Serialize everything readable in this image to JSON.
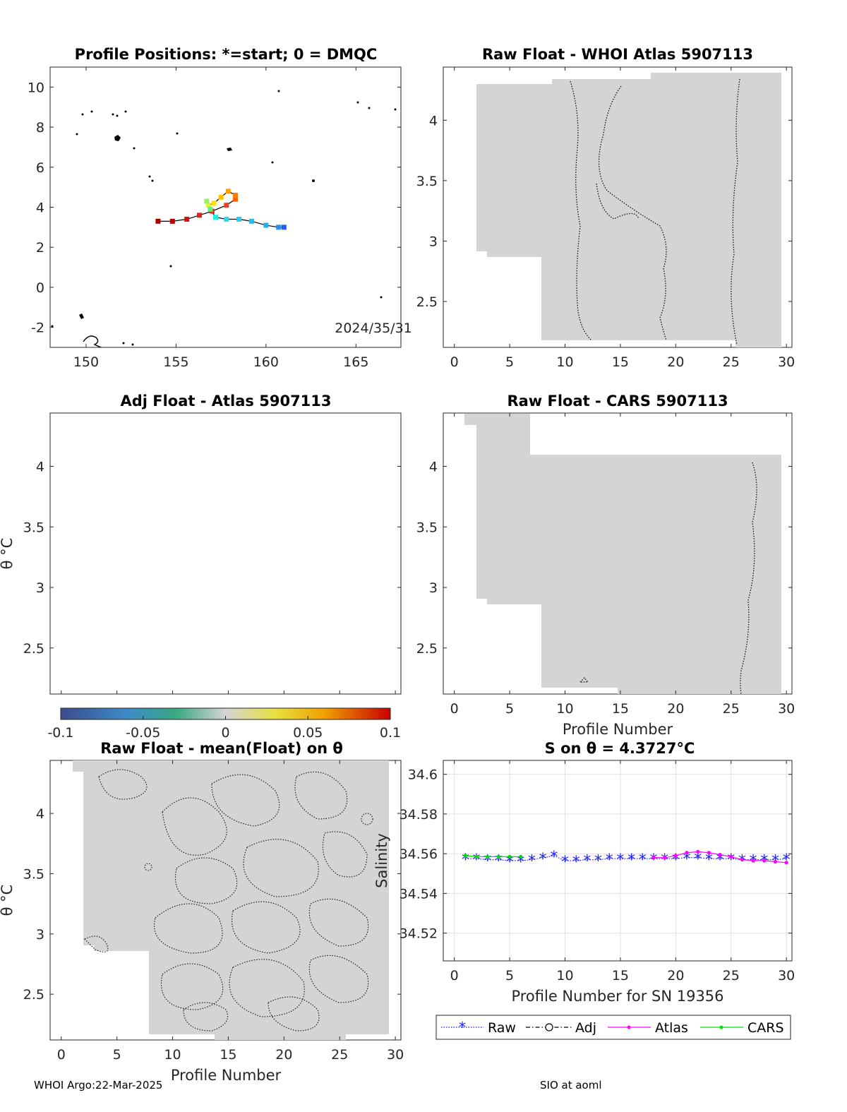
{
  "footer": {
    "left": "WHOI Argo:22-Mar-2025",
    "right": "SIO at aoml"
  },
  "colors": {
    "raw": "#1a1aff",
    "atlas": "#ff00ff",
    "cars": "#00e000",
    "field": "#d4d4d4",
    "track": "#000000"
  },
  "chart_data": [
    {
      "type": "map",
      "title": "Profile Positions: *=start; 0 = DMQC",
      "xlim": [
        148,
        167.5
      ],
      "ylim": [
        -3,
        11
      ],
      "xticks": [
        150,
        155,
        160,
        165
      ],
      "yticks": [
        -2,
        0,
        2,
        4,
        6,
        8,
        10
      ],
      "annotation": "2024/35/31",
      "track": [
        {
          "lon": 154.0,
          "lat": 3.3,
          "color": "#a00000"
        },
        {
          "lon": 154.8,
          "lat": 3.3,
          "color": "#c00000"
        },
        {
          "lon": 155.6,
          "lat": 3.4,
          "color": "#d81010"
        },
        {
          "lon": 156.3,
          "lat": 3.6,
          "color": "#e02020"
        },
        {
          "lon": 157.0,
          "lat": 3.8,
          "color": "#e83020"
        },
        {
          "lon": 157.8,
          "lat": 4.1,
          "color": "#f04020"
        },
        {
          "lon": 158.3,
          "lat": 4.4,
          "color": "#ff6000"
        },
        {
          "lon": 158.3,
          "lat": 4.6,
          "color": "#ff8000"
        },
        {
          "lon": 157.9,
          "lat": 4.8,
          "color": "#ffa000"
        },
        {
          "lon": 157.5,
          "lat": 4.5,
          "color": "#ffc000"
        },
        {
          "lon": 157.1,
          "lat": 4.2,
          "color": "#ffe000"
        },
        {
          "lon": 156.8,
          "lat": 4.1,
          "color": "#e0f040"
        },
        {
          "lon": 156.7,
          "lat": 4.3,
          "color": "#a0f060"
        },
        {
          "lon": 156.9,
          "lat": 3.9,
          "color": "#60f080"
        },
        {
          "lon": 157.2,
          "lat": 3.5,
          "color": "#20f0e0"
        },
        {
          "lon": 157.8,
          "lat": 3.4,
          "color": "#20e0f0"
        },
        {
          "lon": 158.5,
          "lat": 3.4,
          "color": "#20d0f0"
        },
        {
          "lon": 159.2,
          "lat": 3.3,
          "color": "#20c0f0"
        },
        {
          "lon": 160.0,
          "lat": 3.1,
          "color": "#20b0f0"
        },
        {
          "lon": 160.7,
          "lat": 3.0,
          "color": "#2090f0"
        },
        {
          "lon": 161.0,
          "lat": 3.0,
          "color": "#2060f0"
        }
      ]
    },
    {
      "type": "heatmap",
      "title": "Raw Float - WHOI Atlas  5907113",
      "xlim": [
        -1,
        30.5
      ],
      "ylim": [
        2.12,
        4.44
      ],
      "xticks": [
        0,
        5,
        10,
        15,
        20,
        25,
        30
      ],
      "yticks": [
        2.5,
        3,
        3.5,
        4
      ]
    },
    {
      "type": "heatmap",
      "title": "Adj Float - Atlas  5907113",
      "ylabel": "θ °C",
      "xlim": [
        -1,
        30.5
      ],
      "ylim": [
        2.12,
        4.44
      ],
      "yticks": [
        2.5,
        3,
        3.5,
        4
      ],
      "colorbar": {
        "min": -0.1,
        "max": 0.1,
        "ticks": [
          "-0.1",
          "-0.05",
          "0",
          "0.05",
          "0.1"
        ]
      }
    },
    {
      "type": "heatmap",
      "title": "Raw Float - CARS  5907113",
      "xlabel": "Profile Number",
      "xlim": [
        -1,
        30.5
      ],
      "ylim": [
        2.12,
        4.44
      ],
      "xticks": [
        0,
        5,
        10,
        15,
        20,
        25,
        30
      ],
      "yticks": [
        2.5,
        3,
        3.5,
        4
      ]
    },
    {
      "type": "heatmap",
      "title": "Raw Float - mean(Float) on θ",
      "xlabel": "Profile Number",
      "ylabel": "θ °C",
      "xlim": [
        -1,
        30.5
      ],
      "ylim": [
        2.12,
        4.44
      ],
      "xticks": [
        0,
        5,
        10,
        15,
        20,
        25,
        30
      ],
      "yticks": [
        2.5,
        3,
        3.5,
        4
      ]
    },
    {
      "type": "line",
      "title": "S on θ = 4.3727°C",
      "xlabel": "Profile Number for SN 19356",
      "ylabel": "Salinity",
      "xlim": [
        -1,
        30.5
      ],
      "ylim": [
        34.506,
        34.607
      ],
      "xticks": [
        0,
        5,
        10,
        15,
        20,
        25,
        30
      ],
      "yticks": [
        "34.52",
        "34.54",
        "34.56",
        "34.58",
        "34.6"
      ],
      "grid": true,
      "legend": [
        "Raw",
        "Adj",
        "Atlas",
        "CARS"
      ],
      "series": [
        {
          "name": "Raw",
          "x": [
            1,
            2,
            3,
            4,
            5,
            6,
            7,
            8,
            9,
            10,
            11,
            12,
            13,
            14,
            15,
            16,
            17,
            18,
            19,
            20,
            21,
            22,
            23,
            24,
            25,
            26,
            27,
            28,
            29,
            30
          ],
          "values": [
            34.5575,
            34.5575,
            34.557,
            34.557,
            34.5565,
            34.5565,
            34.557,
            34.558,
            34.559,
            34.5565,
            34.5565,
            34.557,
            34.557,
            34.5575,
            34.5575,
            34.5575,
            34.5575,
            34.5575,
            34.5575,
            34.5575,
            34.558,
            34.558,
            34.5575,
            34.5575,
            34.5575,
            34.557,
            34.557,
            34.557,
            34.557,
            34.5575
          ]
        },
        {
          "name": "Atlas",
          "x": [
            18,
            19,
            20,
            21,
            22,
            23,
            24,
            25,
            26,
            27,
            28,
            29,
            30
          ],
          "values": [
            34.558,
            34.558,
            34.559,
            34.5605,
            34.561,
            34.5605,
            34.5595,
            34.5585,
            34.557,
            34.5565,
            34.5565,
            34.556,
            34.5555
          ]
        },
        {
          "name": "CARS",
          "x": [
            1,
            2,
            3,
            4,
            5,
            6
          ],
          "values": [
            34.559,
            34.5585,
            34.5585,
            34.5585,
            34.5585,
            34.5585
          ]
        }
      ]
    }
  ]
}
